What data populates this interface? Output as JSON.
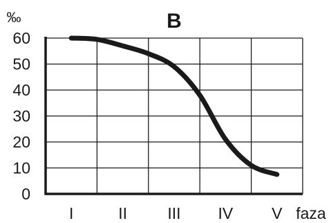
{
  "chart_data": {
    "type": "line",
    "title": "B",
    "unit_label": "‰",
    "xlabel": "faza",
    "ylabel": "",
    "categories": [
      "I",
      "II",
      "III",
      "IV",
      "V"
    ],
    "ylim": [
      0,
      60
    ],
    "yticks": [
      0,
      10,
      20,
      30,
      40,
      50,
      60
    ],
    "grid": true,
    "series": [
      {
        "values": [
          60,
          57,
          50,
          21,
          8
        ]
      }
    ],
    "curve": {
      "x": [
        0.0,
        0.5,
        1.0,
        1.5,
        2.0,
        2.5,
        3.0,
        3.5,
        4.0
      ],
      "y": [
        60,
        59.5,
        57,
        54,
        49,
        38,
        21,
        11,
        7.5
      ]
    }
  }
}
